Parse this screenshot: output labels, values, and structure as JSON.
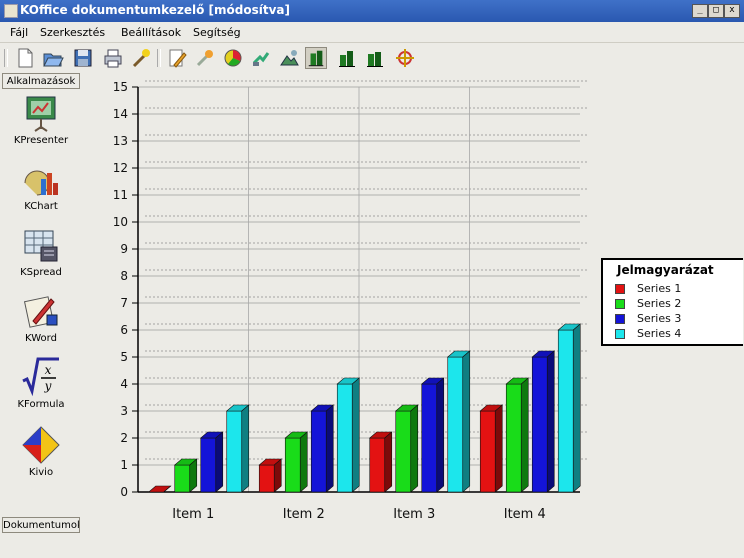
{
  "window": {
    "title": "KOffice dokumentumkezelő [módosítva]",
    "buttons": {
      "minimize": "_",
      "maximize": "□",
      "close": "x"
    }
  },
  "menu": [
    "Fájl",
    "Szerkesztés",
    "Beállítások",
    "Segítség"
  ],
  "toolbar": [
    "new-icon",
    "open-icon",
    "save-icon",
    "print-icon",
    "wizard-icon",
    "edit-icon",
    "config-icon",
    "chart-type-icon",
    "data-edit-icon",
    "page-layout-icon",
    "bar-chart-icon",
    "pie-chart-icon",
    "line-chart-icon",
    "area-icon"
  ],
  "sidebar": {
    "top_tab": "Alkalmazások",
    "bottom_tab": "Dokumentumok",
    "apps": [
      {
        "label": "KPresenter",
        "icon": "kpresenter-icon"
      },
      {
        "label": "KChart",
        "icon": "kchart-icon"
      },
      {
        "label": "KSpread",
        "icon": "kspread-icon"
      },
      {
        "label": "KWord",
        "icon": "kword-icon"
      },
      {
        "label": "KFormula",
        "icon": "kformula-icon"
      },
      {
        "label": "Kivio",
        "icon": "kivio-icon"
      }
    ]
  },
  "chart_data": {
    "type": "bar",
    "categories": [
      "Item 1",
      "Item 2",
      "Item 3",
      "Item 4"
    ],
    "series": [
      {
        "name": "Series 1",
        "values": [
          0,
          1,
          2,
          3
        ],
        "color": "#e31212"
      },
      {
        "name": "Series 2",
        "values": [
          1,
          2,
          3,
          4
        ],
        "color": "#19dc19"
      },
      {
        "name": "Series 3",
        "values": [
          2,
          3,
          4,
          5
        ],
        "color": "#1414d8"
      },
      {
        "name": "Series 4",
        "values": [
          3,
          4,
          5,
          6
        ],
        "color": "#1ce6ec"
      }
    ],
    "ylim": [
      0,
      15
    ],
    "yticks": [
      "0",
      "1",
      "2",
      "3",
      "4",
      "5",
      "6",
      "7",
      "8",
      "9",
      "10",
      "11",
      "12",
      "13",
      "14",
      "15"
    ],
    "grid": true,
    "legend_title": "Jelmagyarázat",
    "legend_position": "right"
  }
}
